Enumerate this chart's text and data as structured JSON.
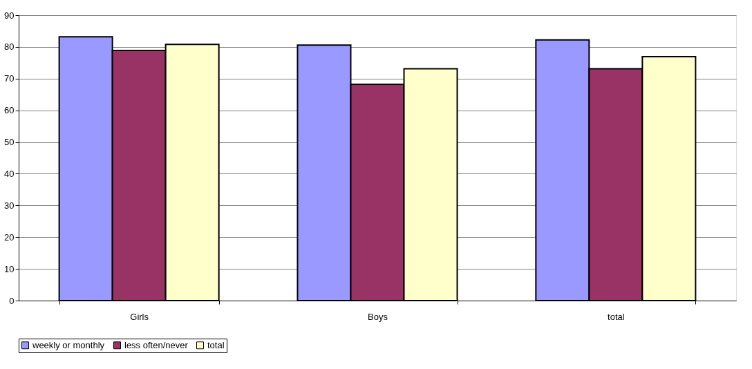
{
  "chart_data": {
    "type": "bar",
    "categories": [
      "Girls",
      "Boys",
      "total"
    ],
    "series": [
      {
        "name": "weekly or monthly",
        "color": "#9999ff",
        "values": [
          83.2,
          80.6,
          82.2
        ]
      },
      {
        "name": "less often/never",
        "color": "#993366",
        "values": [
          78.9,
          68.2,
          73.1
        ]
      },
      {
        "name": "total",
        "color": "#ffffcc",
        "values": [
          80.8,
          73.1,
          76.9
        ]
      }
    ],
    "ylim": [
      0,
      90
    ],
    "yticks": [
      0,
      10,
      20,
      30,
      40,
      50,
      60,
      70,
      80,
      90
    ],
    "grid": "y",
    "legend": "bottom"
  }
}
